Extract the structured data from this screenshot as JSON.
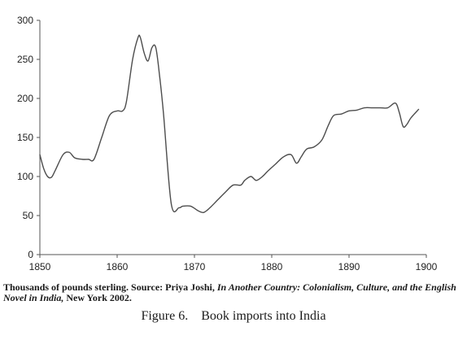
{
  "chart_data": {
    "type": "line",
    "title": "",
    "xlabel": "",
    "ylabel": "",
    "xlim": [
      1850,
      1900
    ],
    "ylim": [
      0,
      300
    ],
    "x_ticks": [
      1850,
      1860,
      1870,
      1880,
      1890,
      1900
    ],
    "y_ticks": [
      0,
      50,
      100,
      150,
      200,
      250,
      300
    ],
    "grid": false,
    "legend": "none",
    "series": [
      {
        "color": "#4d4d4d",
        "x": [
          1850,
          1850.5,
          1851,
          1851.5,
          1852,
          1853,
          1853.8,
          1854.5,
          1855.5,
          1856.3,
          1857,
          1858,
          1859,
          1860,
          1860.7,
          1861.2,
          1862,
          1862.7,
          1863,
          1863.5,
          1864,
          1864.5,
          1865,
          1865.5,
          1866,
          1867,
          1868,
          1868.5,
          1869.5,
          1870.5,
          1871.2,
          1872,
          1873,
          1874,
          1875,
          1876,
          1876.5,
          1877.3,
          1878,
          1878.8,
          1879.5,
          1880.5,
          1881.5,
          1882.5,
          1883.2,
          1883.8,
          1884.5,
          1885.5,
          1886.5,
          1887.3,
          1888,
          1889,
          1890,
          1891,
          1892,
          1893,
          1894,
          1895,
          1896,
          1896.5,
          1897,
          1897.5,
          1898,
          1899
        ],
        "y": [
          128,
          110,
          100,
          99,
          108,
          128,
          131,
          124,
          122,
          122,
          122,
          150,
          178,
          184,
          184,
          196,
          250,
          278,
          278,
          258,
          248,
          265,
          265,
          228,
          180,
          65,
          60,
          62,
          62,
          56,
          54,
          60,
          70,
          80,
          89,
          89,
          95,
          100,
          95,
          100,
          107,
          116,
          125,
          128,
          117,
          125,
          135,
          138,
          147,
          165,
          178,
          180,
          184,
          185,
          188,
          188,
          188,
          188,
          194,
          182,
          164,
          167,
          175,
          186
        ]
      }
    ]
  },
  "caption": {
    "prefix": "Thousands of pounds sterling. Source: Priya Joshi, ",
    "book_title": "In Another Country: Colonialism, Culture, and the English Novel in India,",
    "suffix": " New York 2002."
  },
  "figure": {
    "number": "Figure 6.",
    "title": "Book imports into India"
  }
}
